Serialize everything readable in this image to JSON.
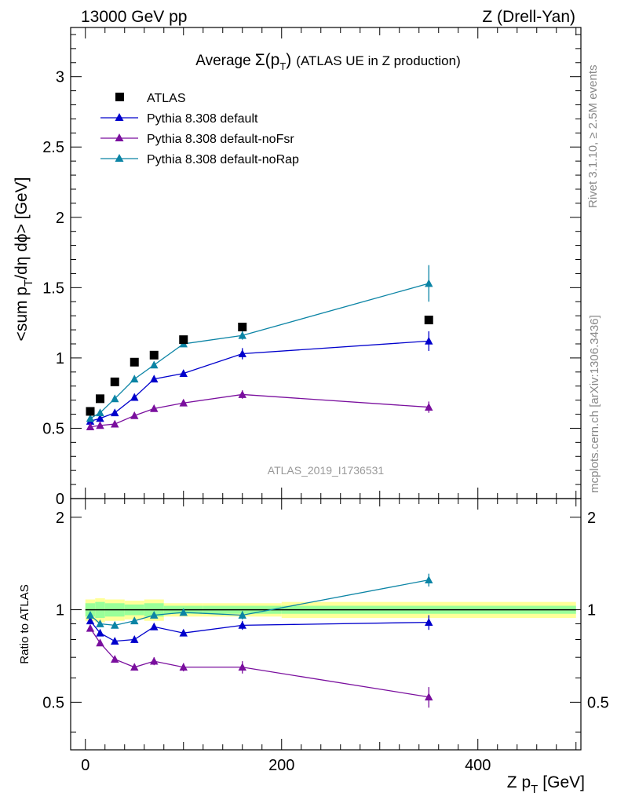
{
  "header": {
    "energy_label": "13000 GeV pp",
    "process_label": "Z (Drell-Yan)",
    "side_rivet": "Rivet 3.1.10, ≥ 2.5M events",
    "side_mcplots": "mcplots.cern.ch [arXiv:1306.3436]",
    "analysis_id": "ATLAS_2019_I1736531"
  },
  "colors": {
    "atlas": "#000000",
    "default": "#0000cc",
    "noFsr": "#7a0f9e",
    "noRap": "#0b84a5",
    "band_inner": "#99ff99",
    "band_outer": "#ffff99"
  },
  "chart_data": [
    {
      "type": "scatter",
      "title_prefix": "Average",
      "title_symbol": "Σ(p",
      "title_sub": "T",
      "title_close": ")",
      "title_suffix": "(ATLAS UE in Z production)",
      "ylabel_prefix": "<sum p",
      "ylabel_sub": "T",
      "ylabel_suffix": "/dη dϕ> [GeV]",
      "xlim": [
        -15,
        505
      ],
      "ylim": [
        0,
        3.35
      ],
      "x_ticks": [
        0,
        200,
        400
      ],
      "y_ticks": [
        0,
        0.5,
        1,
        1.5,
        2,
        2.5,
        3
      ],
      "y_tick_labels": [
        "0",
        "0.5",
        "1",
        "1.5",
        "2",
        "2.5",
        "3"
      ],
      "legend_position": "top-left",
      "legend": [
        "ATLAS",
        "Pythia 8.308 default",
        "Pythia 8.308 default-noFsr",
        "Pythia 8.308 default-noRap"
      ],
      "x": [
        5,
        15,
        30,
        50,
        70,
        100,
        160,
        350
      ],
      "series": [
        {
          "name": "ATLAS",
          "marker": "square",
          "values": [
            0.62,
            0.71,
            0.83,
            0.97,
            1.02,
            1.13,
            1.22,
            1.27
          ]
        },
        {
          "name": "Pythia 8.308 default",
          "marker": "triangle",
          "values": [
            0.55,
            0.57,
            0.61,
            0.72,
            0.85,
            0.89,
            1.03,
            1.12
          ],
          "errors": [
            0.02,
            0.02,
            0.02,
            0.02,
            0.02,
            0.02,
            0.04,
            0.07
          ]
        },
        {
          "name": "Pythia 8.308 default-noFsr",
          "marker": "triangle",
          "values": [
            0.51,
            0.52,
            0.53,
            0.59,
            0.64,
            0.68,
            0.74,
            0.65
          ],
          "errors": [
            0.01,
            0.01,
            0.01,
            0.01,
            0.01,
            0.02,
            0.03,
            0.04
          ]
        },
        {
          "name": "Pythia 8.308 default-noRap",
          "marker": "triangle",
          "values": [
            0.57,
            0.61,
            0.71,
            0.85,
            0.95,
            1.1,
            1.16,
            1.53
          ],
          "errors": [
            0.01,
            0.01,
            0.01,
            0.02,
            0.02,
            0.02,
            0.03,
            0.13
          ]
        }
      ]
    },
    {
      "type": "scatter",
      "ylabel": "Ratio to ATLAS",
      "xlabel_prefix": "Z p",
      "xlabel_sub": "T",
      "xlabel_suffix": "[GeV]",
      "xlim": [
        -15,
        505
      ],
      "ylim": [
        0.35,
        2.3
      ],
      "x_ticks": [
        0,
        200,
        400
      ],
      "x_tick_labels": [
        "0",
        "200",
        "400"
      ],
      "y_ticks": [
        0.5,
        1,
        2
      ],
      "y_tick_labels": [
        "0.5",
        "1",
        "2"
      ],
      "reference_line": 1,
      "x": [
        5,
        15,
        30,
        50,
        70,
        100,
        160,
        350
      ],
      "band_edges": [
        0,
        10,
        20,
        40,
        60,
        80,
        120,
        200,
        500
      ],
      "band_inner": [
        0.05,
        0.06,
        0.05,
        0.04,
        0.05,
        0.03,
        0.03,
        0.03
      ],
      "band_outer": [
        0.08,
        0.09,
        0.08,
        0.07,
        0.08,
        0.05,
        0.05,
        0.06
      ],
      "series": [
        {
          "name": "Pythia 8.308 default",
          "values": [
            0.92,
            0.84,
            0.79,
            0.8,
            0.88,
            0.84,
            0.89,
            0.91
          ],
          "errors": [
            0.02,
            0.02,
            0.02,
            0.02,
            0.02,
            0.02,
            0.03,
            0.05
          ]
        },
        {
          "name": "Pythia 8.308 default-noFsr",
          "values": [
            0.87,
            0.78,
            0.69,
            0.65,
            0.68,
            0.65,
            0.65,
            0.52
          ],
          "errors": [
            0.01,
            0.01,
            0.01,
            0.01,
            0.02,
            0.02,
            0.03,
            0.04
          ]
        },
        {
          "name": "Pythia 8.308 default-noRap",
          "values": [
            0.96,
            0.9,
            0.89,
            0.92,
            0.96,
            0.98,
            0.96,
            1.25
          ],
          "errors": [
            0.01,
            0.01,
            0.01,
            0.02,
            0.02,
            0.02,
            0.03,
            0.06
          ]
        }
      ]
    }
  ]
}
